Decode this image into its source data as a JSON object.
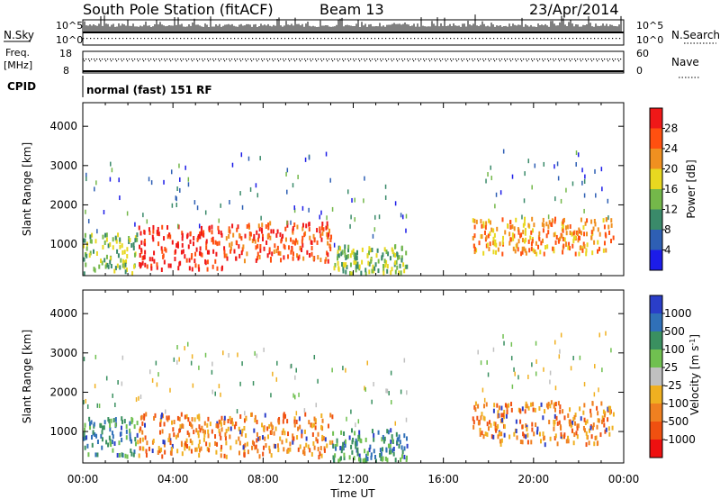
{
  "header": {
    "station": "South Pole Station (fitACF)",
    "beam": "Beam 13",
    "date": "23/Apr/2014"
  },
  "top_panels": {
    "nsky_label": "N.Sky",
    "nsky_hi": "10^5",
    "nsky_lo": "10^0",
    "nsearch_label": "N.Search",
    "nsearch_hi": "10^5",
    "nsearch_lo": "10^0",
    "freq_label_1": "Freq.",
    "freq_label_2": "[MHz]",
    "freq_hi": "18",
    "freq_lo": "8",
    "nave_label": "Nave",
    "nave_hi": "60",
    "nave_lo": "0",
    "cpid_label": "CPID",
    "cpid_text": "normal (fast) 151 RF"
  },
  "chart_data": [
    {
      "type": "heatmap",
      "name": "power-panel",
      "ylabel": "Slant Range [km]",
      "ylim": [
        200,
        4600
      ],
      "yticks": [
        "1000",
        "2000",
        "3000",
        "4000"
      ],
      "xlim": [
        "00:00",
        "24:00"
      ],
      "colorbar_label": "Power [dB]",
      "colorbar_ticks": [
        "4",
        "8",
        "12",
        "16",
        "20",
        "24",
        "28"
      ],
      "colorbar_colors": [
        "#1c1ce8",
        "#2e5fb4",
        "#3a8a6a",
        "#74b84a",
        "#e8d820",
        "#f09020",
        "#ff5010",
        "#f01818"
      ],
      "regions": [
        {
          "t0": 0.0,
          "t1": 0.1,
          "r0": 300,
          "r1": 1300,
          "level": 3
        },
        {
          "t0": 0.1,
          "t1": 0.26,
          "r0": 400,
          "r1": 1500,
          "level": 7
        },
        {
          "t0": 0.26,
          "t1": 0.46,
          "r0": 600,
          "r1": 1600,
          "level": 6
        },
        {
          "t0": 0.46,
          "t1": 0.6,
          "r0": 300,
          "r1": 1000,
          "level": 3
        },
        {
          "t0": 0.72,
          "t1": 0.98,
          "r0": 800,
          "r1": 1700,
          "level": 5
        }
      ]
    },
    {
      "type": "heatmap",
      "name": "velocity-panel",
      "ylabel": "Slant Range [km]",
      "ylim": [
        200,
        4600
      ],
      "yticks": [
        "1000",
        "2000",
        "3000",
        "4000"
      ],
      "xlabel": "Time UT",
      "xticks": [
        "00:00",
        "04:00",
        "08:00",
        "12:00",
        "16:00",
        "20:00",
        "00:00"
      ],
      "colorbar_label": "Velocity [m s^-1]",
      "colorbar_label_main": "Velocity [m s",
      "colorbar_label_sup": "-1",
      "colorbar_label_end": "]",
      "colorbar_ticks": [
        "1000",
        "500",
        "100",
        "25",
        "-25",
        "-100",
        "-500",
        "-1000"
      ],
      "colorbar_colors": [
        "#2a3ec8",
        "#3070b8",
        "#3a9060",
        "#70c050",
        "#c0c0c0",
        "#f0b020",
        "#f08020",
        "#f05010",
        "#ee1010"
      ],
      "regions": [
        {
          "t0": 0.0,
          "t1": 0.1,
          "r0": 400,
          "r1": 1400,
          "level": "green"
        },
        {
          "t0": 0.1,
          "t1": 0.46,
          "r0": 400,
          "r1": 1500,
          "level": "orange"
        },
        {
          "t0": 0.46,
          "t1": 0.6,
          "r0": 300,
          "r1": 1100,
          "level": "green"
        },
        {
          "t0": 0.72,
          "t1": 0.98,
          "r0": 700,
          "r1": 1800,
          "level": "orange"
        }
      ]
    }
  ]
}
